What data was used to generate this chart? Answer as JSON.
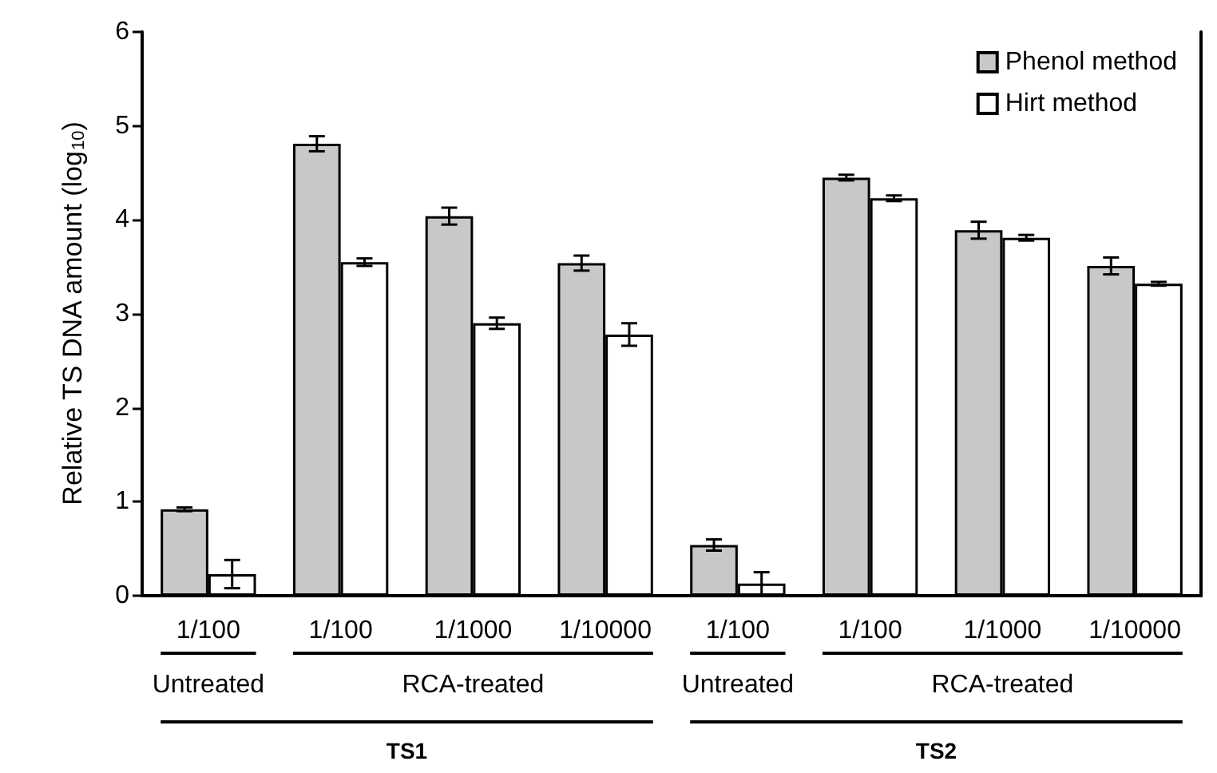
{
  "chart_data": {
    "type": "bar",
    "ylabel": "Relative TS DNA amount (log$_{10}$)",
    "categories": [
      "1/100",
      "1/100",
      "1/1000",
      "1/10000",
      "1/100",
      "1/100",
      "1/1000",
      "1/10000"
    ],
    "series": [
      {
        "name": "Phenol method",
        "color": "#c8c8c8",
        "values": [
          0.92,
          4.81,
          4.04,
          3.54,
          0.54,
          4.45,
          3.89,
          3.51
        ],
        "errors": [
          0.02,
          0.08,
          0.09,
          0.08,
          0.06,
          0.03,
          0.09,
          0.09
        ]
      },
      {
        "name": "Hirt method",
        "color": "#ffffff",
        "values": [
          0.23,
          3.55,
          2.9,
          2.78,
          0.13,
          4.23,
          3.81,
          3.32
        ],
        "errors": [
          0.15,
          0.04,
          0.06,
          0.12,
          0.12,
          0.03,
          0.03,
          0.02
        ]
      }
    ],
    "ylim": [
      0,
      6
    ],
    "yticks": [
      0,
      1,
      2,
      3,
      4,
      5,
      6
    ],
    "grid": false,
    "legend": "top right",
    "annotations": [
      "Untreated",
      "RCA-treated",
      "Untreated",
      "RCA-treated",
      "TS1",
      "TS2"
    ]
  }
}
